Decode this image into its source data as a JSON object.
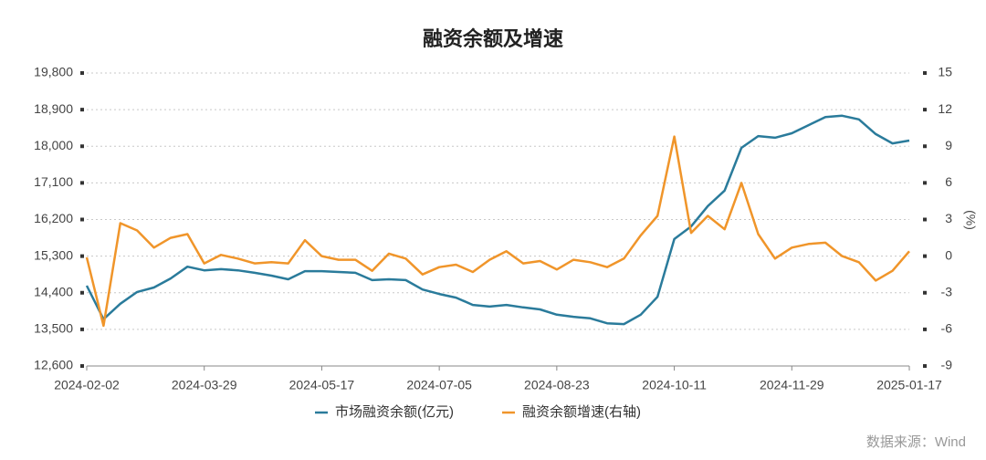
{
  "chart_data": {
    "type": "line",
    "title": "融资余额及增速",
    "categories": [
      "2024-02-02",
      null,
      null,
      null,
      null,
      null,
      null,
      "2024-03-29",
      null,
      null,
      null,
      null,
      null,
      null,
      "2024-05-17",
      null,
      null,
      null,
      null,
      null,
      null,
      "2024-07-05",
      null,
      null,
      null,
      null,
      null,
      null,
      "2024-08-23",
      null,
      null,
      null,
      null,
      null,
      null,
      "2024-10-11",
      null,
      null,
      null,
      null,
      null,
      null,
      "2024-11-29",
      null,
      null,
      null,
      null,
      null,
      null,
      "2025-01-17"
    ],
    "series": [
      {
        "name": "市场融资余额(亿元)",
        "color": "#2a7b9b",
        "values": [
          14573,
          13750,
          14130,
          14420,
          14530,
          14750,
          15040,
          14950,
          14980,
          14950,
          14890,
          14820,
          14730,
          14930,
          14930,
          14910,
          14890,
          14710,
          14730,
          14710,
          14480,
          14370,
          14280,
          14100,
          14060,
          14100,
          14040,
          13990,
          13860,
          13810,
          13770,
          13650,
          13630,
          13860,
          14300,
          15720,
          16030,
          16530,
          16910,
          17960,
          18250,
          18210,
          18320,
          18520,
          18720,
          18750,
          18660,
          18300,
          18070,
          18140
        ]
      },
      {
        "name": "融资余额增速(右轴)",
        "color": "#f0952a",
        "axis": "y2",
        "values": [
          -0.1,
          -5.7,
          2.7,
          2.1,
          0.7,
          1.5,
          1.8,
          -0.6,
          0.1,
          -0.2,
          -0.6,
          -0.5,
          -0.6,
          1.3,
          0,
          -0.3,
          -0.3,
          -1.2,
          0.2,
          -0.2,
          -1.5,
          -0.9,
          -0.7,
          -1.3,
          -0.3,
          0.4,
          -0.6,
          -0.4,
          -1.1,
          -0.3,
          -0.5,
          -0.9,
          -0.2,
          1.7,
          3.3,
          9.8,
          1.9,
          3.3,
          2.2,
          6.0,
          1.8,
          -0.2,
          0.7,
          1.0,
          1.1,
          0,
          -0.5,
          -2.0,
          -1.2,
          0.4
        ]
      }
    ],
    "ylim": [
      12600,
      19800
    ],
    "yticks": [
      {
        "value": 12600,
        "label": "12,600"
      },
      {
        "value": 13500,
        "label": "13,500"
      },
      {
        "value": 14400,
        "label": "14,400"
      },
      {
        "value": 15300,
        "label": "15,300"
      },
      {
        "value": 16200,
        "label": "16,200"
      },
      {
        "value": 17100,
        "label": "17,100"
      },
      {
        "value": 18000,
        "label": "18,000"
      },
      {
        "value": 18900,
        "label": "18,900"
      },
      {
        "value": 19800,
        "label": "19,800"
      }
    ],
    "y2lim": [
      -9,
      15
    ],
    "y2ticks": [
      -9,
      -6,
      -3,
      0,
      3,
      6,
      9,
      12,
      15
    ],
    "y2label": "(%)",
    "grid": true,
    "legend": "bottom",
    "source": "数据来源：Wind"
  }
}
